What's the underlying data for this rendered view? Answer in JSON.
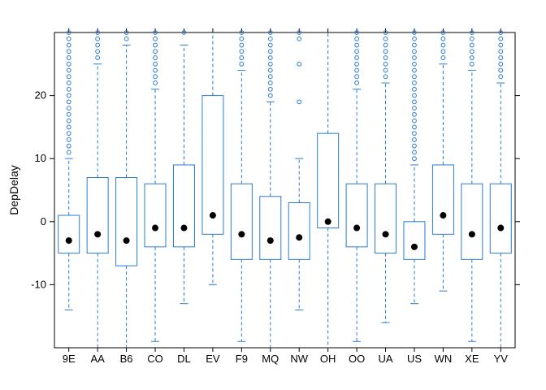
{
  "chart_data": {
    "type": "boxplot",
    "title": "",
    "xlabel": "",
    "ylabel": "DepDelay",
    "ylim": [
      -20,
      30
    ],
    "y_ticks": [
      -10,
      0,
      10,
      20
    ],
    "grid": false,
    "colors": {
      "box": "#2b7bd0",
      "median": "#000000",
      "axis": "#000000"
    },
    "categories": [
      "9E",
      "AA",
      "B6",
      "CO",
      "DL",
      "EV",
      "F9",
      "MQ",
      "NW",
      "OH",
      "OO",
      "UA",
      "US",
      "WN",
      "XE",
      "YV"
    ],
    "boxes": [
      {
        "q1": -5,
        "median": -3,
        "q3": 1,
        "whisker_low": -14,
        "whisker_high": 10,
        "outliers_from": 11
      },
      {
        "q1": -5,
        "median": -2,
        "q3": 7,
        "whisker_low": -20,
        "whisker_high": 25,
        "outliers_from": 26
      },
      {
        "q1": -7,
        "median": -3,
        "q3": 7,
        "whisker_low": -20,
        "whisker_high": 28,
        "outliers_from": 29
      },
      {
        "q1": -4,
        "median": -1,
        "q3": 6,
        "whisker_low": -19,
        "whisker_high": 21,
        "outliers_from": 22
      },
      {
        "q1": -4,
        "median": -1,
        "q3": 9,
        "whisker_low": -13,
        "whisker_high": 28,
        "outliers_from": 30
      },
      {
        "q1": -2,
        "median": 1,
        "q3": 20,
        "whisker_low": -10,
        "whisker_high": 30,
        "outliers_from": null
      },
      {
        "q1": -6,
        "median": -2,
        "q3": 6,
        "whisker_low": -19,
        "whisker_high": 24,
        "outliers_from": 25
      },
      {
        "q1": -6,
        "median": -3,
        "q3": 4,
        "whisker_low": -20,
        "whisker_high": 19,
        "outliers_from": 20
      },
      {
        "q1": -6,
        "median": -2.5,
        "q3": 3,
        "whisker_low": -14,
        "whisker_high": 10,
        "outliers": [
          19,
          25,
          29,
          30
        ]
      },
      {
        "q1": -1,
        "median": 0,
        "q3": 14,
        "whisker_low": -20,
        "whisker_high": 30,
        "outliers_from": null
      },
      {
        "q1": -4,
        "median": -1,
        "q3": 6,
        "whisker_low": -19,
        "whisker_high": 21,
        "outliers_from": 22
      },
      {
        "q1": -5,
        "median": -2,
        "q3": 6,
        "whisker_low": -16,
        "whisker_high": 22,
        "outliers_from": 23
      },
      {
        "q1": -6,
        "median": -4,
        "q3": 0,
        "whisker_low": -13,
        "whisker_high": 9,
        "outliers_from": 10
      },
      {
        "q1": -2,
        "median": 1,
        "q3": 9,
        "whisker_low": -11,
        "whisker_high": 25,
        "outliers_from": 26
      },
      {
        "q1": -6,
        "median": -2,
        "q3": 6,
        "whisker_low": -19,
        "whisker_high": 24,
        "outliers_from": 25
      },
      {
        "q1": -5,
        "median": -1,
        "q3": 6,
        "whisker_low": -20,
        "whisker_high": 22,
        "outliers_from": 23
      }
    ]
  }
}
